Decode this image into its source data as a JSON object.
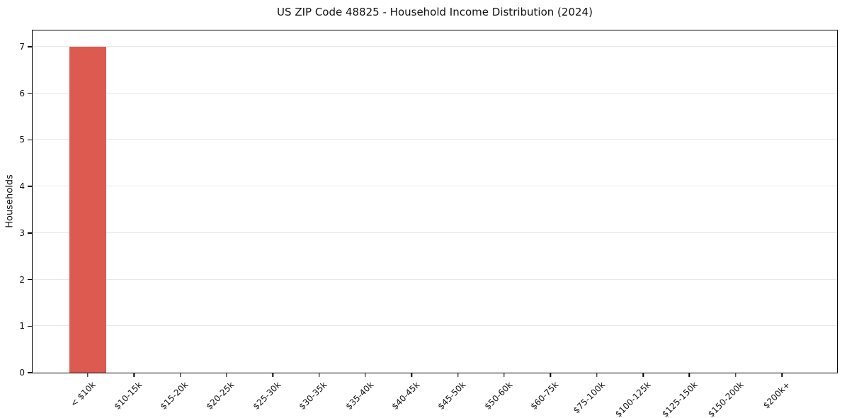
{
  "chart_data": {
    "type": "bar",
    "title": "US ZIP Code 48825 - Household Income Distribution (2024)",
    "xlabel": "",
    "ylabel": "Households",
    "categories": [
      "< $10k",
      "$10-15k",
      "$15-20k",
      "$20-25k",
      "$25-30k",
      "$30-35k",
      "$35-40k",
      "$40-45k",
      "$45-50k",
      "$50-60k",
      "$60-75k",
      "$75-100k",
      "$100-125k",
      "$125-150k",
      "$150-200k",
      "$200k+"
    ],
    "values": [
      7,
      0,
      0,
      0,
      0,
      0,
      0,
      0,
      0,
      0,
      0,
      0,
      0,
      0,
      0,
      0
    ],
    "yticks": [
      0,
      1,
      2,
      3,
      4,
      5,
      6,
      7
    ],
    "ylim": [
      0,
      7.35
    ],
    "grid": "horizontal",
    "legend": "none",
    "x_tick_rotation_deg": 45,
    "bar_color": "#dc5a50",
    "gridline_color": "#e8e8e8",
    "frame_color": "#000000",
    "text_color": "#111111"
  }
}
